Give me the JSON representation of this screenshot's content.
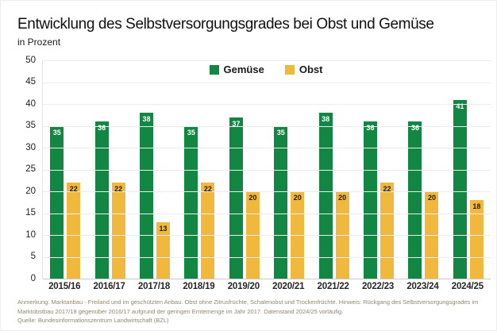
{
  "header": {
    "title": "Entwicklung des Selbstversorgungsgrades bei Obst und Gemüse",
    "subtitle": "in Prozent"
  },
  "chart_data": {
    "type": "bar",
    "title": "Entwicklung des Selbstversorgungsgrades bei Obst und Gemüse",
    "subtitle": "in Prozent",
    "categories": [
      "2015/16",
      "2016/17",
      "2017/18",
      "2018/19",
      "2019/20",
      "2020/21",
      "2021/22",
      "2022/23",
      "2023/24",
      "2024/25"
    ],
    "series": [
      {
        "name": "Gemüse",
        "color": "#128643",
        "label_color": "#ffffff",
        "values": [
          35,
          36,
          38,
          35,
          37,
          35,
          38,
          36,
          36,
          41
        ]
      },
      {
        "name": "Obst",
        "color": "#f0b83d",
        "label_color": "#232014",
        "values": [
          22,
          22,
          13,
          22,
          20,
          20,
          20,
          22,
          20,
          18
        ]
      }
    ],
    "ylim": [
      0,
      50
    ],
    "ytick_step": 5,
    "grid": true,
    "legend_position": "top-center",
    "xlabel": "",
    "ylabel": ""
  },
  "footer": {
    "note": "Anmerkung: Marktanbau - Freiland und im geschützten Anbau. Obst ohne Zitrusfrüchte, Schalenobst und Trockenfrüchte. Hinweis: Rückgang des Selbstversorgungsgrades im Marktobstbau 2017/18 gegenüber 2016/17 aufgrund der geringen Erntemenge im Jahr 2017. Datenstand 2024/25 vorläufig.",
    "source": "Quelle: Bundesinformationszentrum Landwirtschaft (BZL)"
  }
}
